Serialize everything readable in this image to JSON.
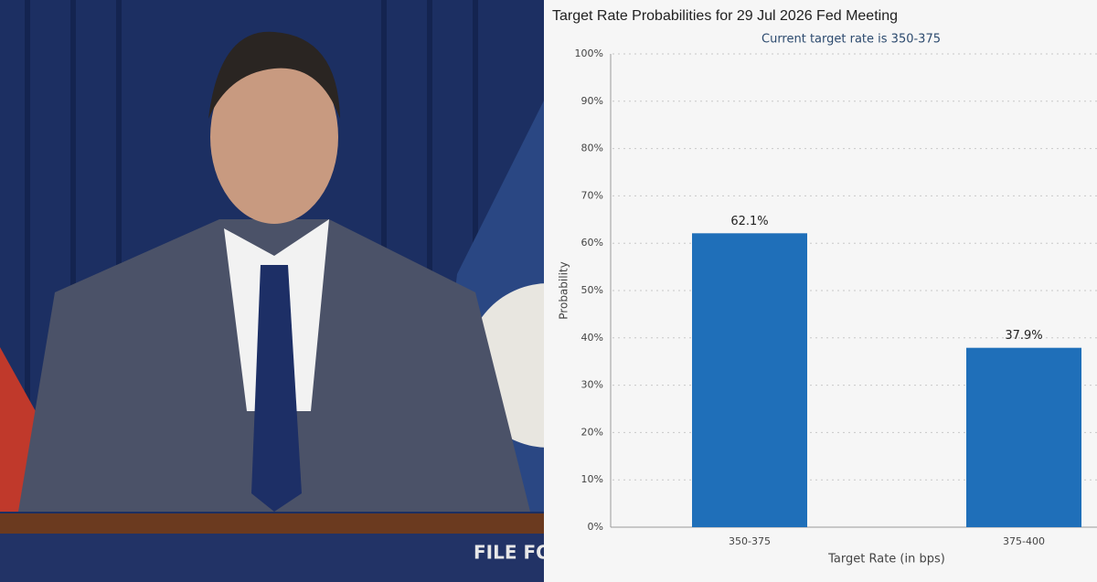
{
  "photo": {
    "sign_text": "FILE FO"
  },
  "chart_data": {
    "type": "bar",
    "title": "Target Rate Probabilities for 29 Jul 2026 Fed Meeting",
    "subtitle": "Current target rate is 350-375",
    "x_label": "Target Rate (in bps)",
    "y_label": "Probability",
    "categories": [
      "350-375",
      "375-400"
    ],
    "values": [
      62.1,
      37.9
    ],
    "value_labels": [
      "62.1%",
      "37.9%"
    ],
    "color": "#1f6fb9",
    "ylim": [
      0,
      100
    ],
    "yticks": [
      {
        "value": 0,
        "label": "0%"
      },
      {
        "value": 10,
        "label": "10%"
      },
      {
        "value": 20,
        "label": "20%"
      },
      {
        "value": 30,
        "label": "30%"
      },
      {
        "value": 40,
        "label": "40%"
      },
      {
        "value": 50,
        "label": "50%"
      },
      {
        "value": 60,
        "label": "60%"
      },
      {
        "value": 70,
        "label": "70%"
      },
      {
        "value": 80,
        "label": "80%"
      },
      {
        "value": 90,
        "label": "90%"
      },
      {
        "value": 100,
        "label": "100%"
      }
    ],
    "grid": true
  }
}
